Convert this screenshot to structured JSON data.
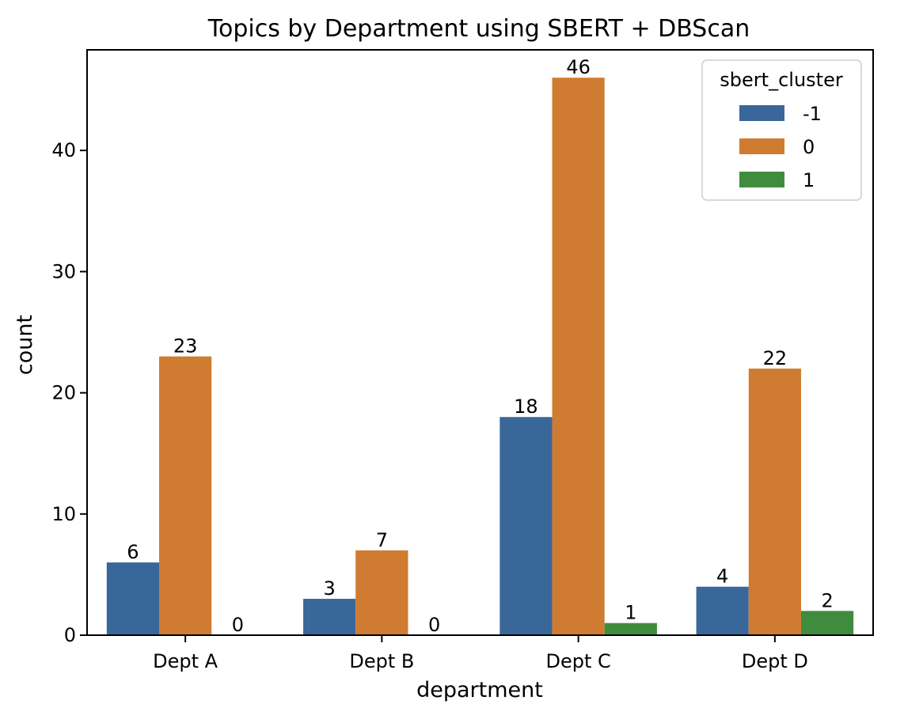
{
  "chart_data": {
    "type": "bar",
    "title": "Topics by Department using SBERT + DBScan",
    "xlabel": "department",
    "ylabel": "count",
    "categories": [
      "Dept A",
      "Dept B",
      "Dept C",
      "Dept D"
    ],
    "ylim": [
      0,
      48.3
    ],
    "yticks": [
      0,
      10,
      20,
      30,
      40
    ],
    "grid": false,
    "legend": {
      "title": "sbert_cluster",
      "placement": "top-right"
    },
    "series": [
      {
        "name": "-1",
        "color": "#3a6799",
        "values": [
          6,
          3,
          18,
          4
        ]
      },
      {
        "name": "0",
        "color": "#d07b32",
        "values": [
          23,
          7,
          46,
          22
        ]
      },
      {
        "name": "1",
        "color": "#3f8c3f",
        "values": [
          0,
          0,
          1,
          2
        ]
      }
    ],
    "data_labels": true
  }
}
